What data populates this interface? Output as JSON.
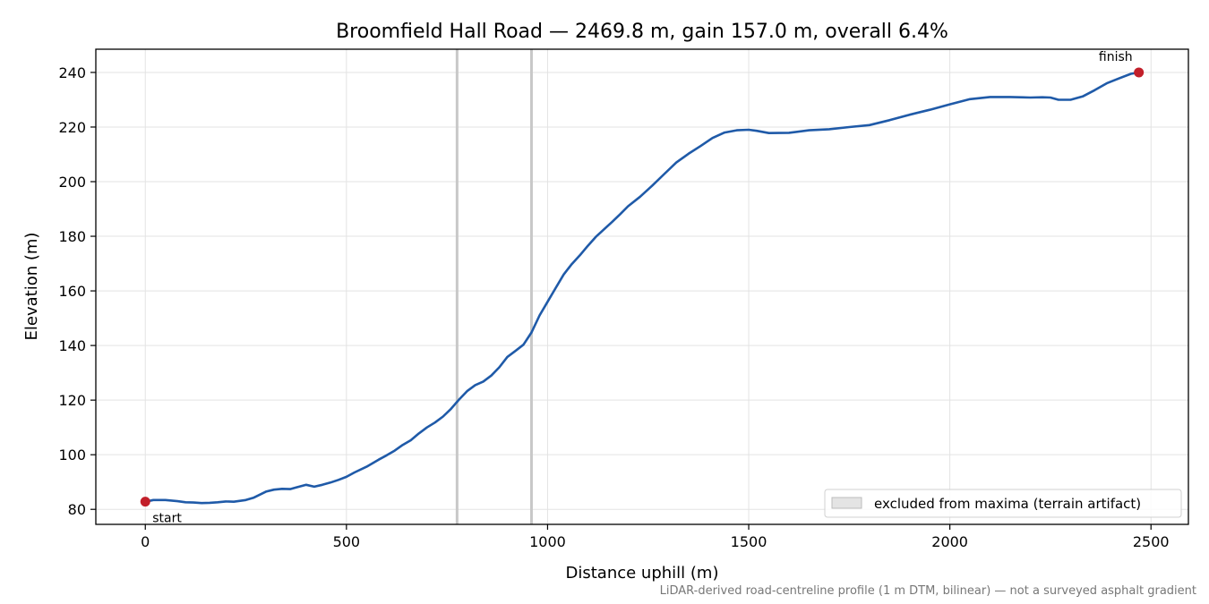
{
  "chart_data": {
    "type": "line",
    "title": "Broomfield Hall Road — 2469.8 m, gain 157.0 m, overall 6.4%",
    "xlabel": "Distance uphill (m)",
    "ylabel": "Elevation (m)",
    "xlim": [
      -123,
      2593
    ],
    "ylim": [
      74.5,
      248.5
    ],
    "xticks": [
      0,
      500,
      1000,
      1500,
      2000,
      2500
    ],
    "yticks": [
      80,
      100,
      120,
      140,
      160,
      180,
      200,
      220,
      240
    ],
    "grid": true,
    "series": [
      {
        "color": "#1f5aa8",
        "x": [
          0,
          20,
          50,
          80,
          100,
          120,
          140,
          160,
          180,
          200,
          220,
          250,
          270,
          300,
          320,
          340,
          360,
          375,
          400,
          420,
          440,
          460,
          480,
          500,
          520,
          550,
          580,
          600,
          620,
          640,
          660,
          680,
          700,
          720,
          740,
          760,
          770,
          780,
          800,
          820,
          840,
          860,
          880,
          900,
          920,
          940,
          960,
          980,
          1000,
          1020,
          1040,
          1060,
          1080,
          1100,
          1120,
          1140,
          1160,
          1180,
          1200,
          1230,
          1260,
          1290,
          1320,
          1350,
          1380,
          1410,
          1440,
          1470,
          1500,
          1520,
          1550,
          1600,
          1650,
          1700,
          1750,
          1800,
          1850,
          1900,
          1950,
          2000,
          2050,
          2100,
          2150,
          2200,
          2230,
          2250,
          2270,
          2300,
          2330,
          2360,
          2390,
          2420,
          2450,
          2469.8
        ],
        "y": [
          82.8,
          83.4,
          83.4,
          83.0,
          82.6,
          82.5,
          82.3,
          82.4,
          82.6,
          82.9,
          82.8,
          83.4,
          84.3,
          86.5,
          87.2,
          87.5,
          87.4,
          88.0,
          89.0,
          88.3,
          89.0,
          89.8,
          90.8,
          91.9,
          93.5,
          95.6,
          98.2,
          99.8,
          101.5,
          103.6,
          105.3,
          107.8,
          110.0,
          111.8,
          114.0,
          116.8,
          118.5,
          120.2,
          123.3,
          125.5,
          126.8,
          129.0,
          132.0,
          135.8,
          138.0,
          140.3,
          144.8,
          151.0,
          156.0,
          161.0,
          166.0,
          169.8,
          173.0,
          176.5,
          179.8,
          182.5,
          185.2,
          188.0,
          191.0,
          194.5,
          198.5,
          202.8,
          207.0,
          210.2,
          213.0,
          216.0,
          218.0,
          218.8,
          219.0,
          218.6,
          217.8,
          217.9,
          218.8,
          219.2,
          220.0,
          220.7,
          222.5,
          224.5,
          226.3,
          228.3,
          230.2,
          231.0,
          231.0,
          230.8,
          230.9,
          230.8,
          230.0,
          230.0,
          231.2,
          233.5,
          236.0,
          237.8,
          239.5,
          240.0
        ]
      }
    ],
    "markers": [
      {
        "label": "start",
        "x": 0,
        "y": 82.8,
        "color": "#c21f2a"
      },
      {
        "label": "finish",
        "x": 2469.8,
        "y": 240.0,
        "color": "#c21f2a"
      }
    ],
    "excluded_lines_x": [
      775,
      960
    ],
    "legend": {
      "placement": "bottom-right",
      "label": "excluded from maxima (terrain artifact)"
    },
    "footnote": "LiDAR-derived road-centreline profile (1 m DTM, bilinear) — not a surveyed asphalt gradient"
  }
}
